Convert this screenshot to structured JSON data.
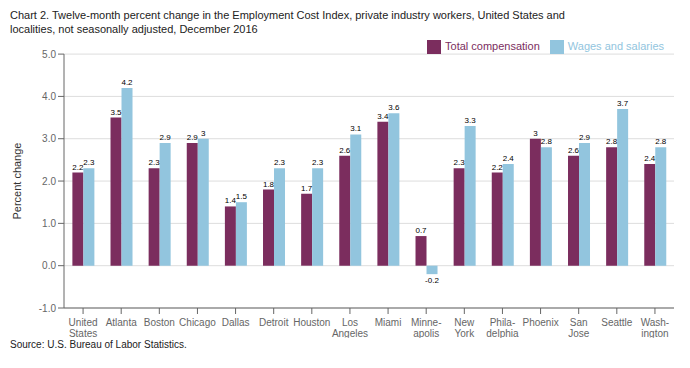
{
  "chart_data": {
    "type": "bar",
    "title": "Chart 2. Twelve-month percent change in the Employment Cost Index, private industry workers, United States and\nlocalities, not seasonally adjusted, December 2016",
    "ylabel": "Percent change",
    "annotations": [
      "Source: U.S. Bureau of Labor Statistics."
    ],
    "categories": [
      "United\nStates",
      "Atlanta",
      "Boston",
      "Chicago",
      "Dallas",
      "Detroit",
      "Houston",
      "Los\nAngeles",
      "Miami",
      "Minne-\napolis",
      "New\nYork",
      "Phila-\ndelphia",
      "Phoenix",
      "San\nJose",
      "Seattle",
      "Wash-\nington"
    ],
    "series": [
      {
        "name": "Total compensation",
        "color": "#7B2D5E",
        "values": [
          2.2,
          3.5,
          2.3,
          2.9,
          1.4,
          1.8,
          1.7,
          2.6,
          3.4,
          0.7,
          2.3,
          2.2,
          3.0,
          2.6,
          2.8,
          2.4
        ]
      },
      {
        "name": "Wages and salaries",
        "color": "#92C5DE",
        "values": [
          2.3,
          4.2,
          2.9,
          3.0,
          1.5,
          2.3,
          2.3,
          3.1,
          3.6,
          -0.2,
          3.3,
          2.4,
          2.8,
          2.9,
          3.7,
          2.8
        ]
      }
    ],
    "ylim": [
      -1.0,
      5.0
    ],
    "yticks": [
      {
        "value": -1.0,
        "label": "-1.0"
      },
      {
        "value": 0.0,
        "label": "0.0"
      },
      {
        "value": 1.0,
        "label": "1.0"
      },
      {
        "value": 2.0,
        "label": "2.0"
      },
      {
        "value": 3.0,
        "label": "3.0"
      },
      {
        "value": 4.0,
        "label": "4.0"
      },
      {
        "value": 5.0,
        "label": "5.0"
      }
    ],
    "grid": true,
    "legend": "upper right",
    "data_labels": true
  }
}
